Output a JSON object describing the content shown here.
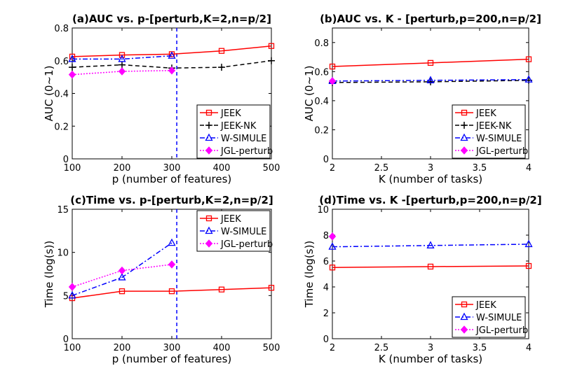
{
  "chart_data": [
    {
      "panel": "a",
      "type": "line",
      "title": "(a)AUC vs. p-[perturb,K=2,n=p/2]",
      "xlabel": "p (number of features)",
      "ylabel": "AUC (0~1)",
      "xlim": [
        100,
        500
      ],
      "ylim": [
        0,
        0.8
      ],
      "xticks": [
        100,
        200,
        300,
        400,
        500
      ],
      "yticks": [
        0,
        0.2,
        0.4,
        0.6,
        0.8
      ],
      "xtick_labels": [
        "100",
        "200",
        "300",
        "400",
        "500"
      ],
      "ytick_labels": [
        "0",
        "0.2",
        "0.4",
        "0.6",
        "0.8"
      ],
      "vline": 310,
      "legend_position": "lower-right",
      "series": [
        {
          "name": "JEEK",
          "x": [
            100,
            200,
            300,
            400,
            500
          ],
          "y": [
            0.625,
            0.635,
            0.64,
            0.66,
            0.69
          ]
        },
        {
          "name": "JEEK-NK",
          "x": [
            100,
            200,
            300,
            400,
            500
          ],
          "y": [
            0.56,
            0.575,
            0.555,
            0.56,
            0.6
          ]
        },
        {
          "name": "W-SIMULE",
          "x": [
            100,
            200,
            300
          ],
          "y": [
            0.61,
            0.61,
            0.63
          ]
        },
        {
          "name": "JGL-perturb",
          "x": [
            100,
            200,
            300
          ],
          "y": [
            0.515,
            0.535,
            0.54
          ]
        }
      ]
    },
    {
      "panel": "b",
      "type": "line",
      "title": "(b)AUC vs. K - [perturb,p=200,n=p/2]",
      "xlabel": "K (number of tasks)",
      "ylabel": "AUC (0~1)",
      "xlim": [
        2,
        4
      ],
      "ylim": [
        0,
        0.9
      ],
      "xticks": [
        2,
        2.5,
        3,
        3.5,
        4
      ],
      "yticks": [
        0,
        0.2,
        0.4,
        0.6,
        0.8
      ],
      "xtick_labels": [
        "2",
        "2.5",
        "3",
        "3.5",
        "4"
      ],
      "ytick_labels": [
        "0",
        "0.2",
        "0.4",
        "0.6",
        "0.8"
      ],
      "legend_position": "lower-right",
      "series": [
        {
          "name": "JEEK",
          "x": [
            2,
            3,
            4
          ],
          "y": [
            0.635,
            0.66,
            0.685
          ]
        },
        {
          "name": "JEEK-NK",
          "x": [
            2,
            3,
            4
          ],
          "y": [
            0.525,
            0.53,
            0.54
          ]
        },
        {
          "name": "W-SIMULE",
          "x": [
            2,
            3,
            4
          ],
          "y": [
            0.535,
            0.54,
            0.545
          ]
        },
        {
          "name": "JGL-perturb",
          "x": [
            2
          ],
          "y": [
            0.535
          ]
        }
      ]
    },
    {
      "panel": "c",
      "type": "line",
      "title": "(c)Time vs. p-[perturb,K=2,n=p/2]",
      "xlabel": "p (number of features)",
      "ylabel": "Time (log(s))",
      "xlim": [
        100,
        500
      ],
      "ylim": [
        0,
        15
      ],
      "xticks": [
        100,
        200,
        300,
        400,
        500
      ],
      "yticks": [
        0,
        5,
        10,
        15
      ],
      "xtick_labels": [
        "100",
        "200",
        "300",
        "400",
        "500"
      ],
      "ytick_labels": [
        "0",
        "5",
        "10",
        "15"
      ],
      "vline": 310,
      "legend_position": "top-right",
      "series": [
        {
          "name": "JEEK",
          "x": [
            100,
            200,
            300,
            400,
            500
          ],
          "y": [
            4.7,
            5.5,
            5.5,
            5.7,
            5.9
          ]
        },
        {
          "name": "W-SIMULE",
          "x": [
            100,
            200,
            300
          ],
          "y": [
            5.0,
            7.1,
            11.1
          ]
        },
        {
          "name": "JGL-perturb",
          "x": [
            100,
            200,
            300
          ],
          "y": [
            6.0,
            7.9,
            8.6
          ]
        }
      ]
    },
    {
      "panel": "d",
      "type": "line",
      "title": "(d)Time vs. K -[perturb,p=200,n=p/2]",
      "xlabel": "K (number of tasks)",
      "ylabel": "Time (log(s))",
      "xlim": [
        2,
        4
      ],
      "ylim": [
        0,
        10
      ],
      "xticks": [
        2,
        2.5,
        3,
        3.5,
        4
      ],
      "yticks": [
        0,
        2,
        4,
        6,
        8,
        10
      ],
      "xtick_labels": [
        "2",
        "2.5",
        "3",
        "3.5",
        "4"
      ],
      "ytick_labels": [
        "0",
        "2",
        "4",
        "6",
        "8",
        "10"
      ],
      "legend_position": "lower-right",
      "series": [
        {
          "name": "JEEK",
          "x": [
            2,
            3,
            4
          ],
          "y": [
            5.5,
            5.57,
            5.62
          ]
        },
        {
          "name": "W-SIMULE",
          "x": [
            2,
            3,
            4
          ],
          "y": [
            7.1,
            7.2,
            7.3
          ]
        },
        {
          "name": "JGL-perturb",
          "x": [
            2
          ],
          "y": [
            7.9
          ]
        }
      ]
    }
  ],
  "series_styles": {
    "JEEK": {
      "color": "#ff0000",
      "marker": "square",
      "dash": "solid"
    },
    "JEEK-NK": {
      "color": "#000000",
      "marker": "plus",
      "dash": "dashed"
    },
    "W-SIMULE": {
      "color": "#0000ff",
      "marker": "triangle",
      "dash": "dashdot"
    },
    "JGL-perturb": {
      "color": "#ff00ff",
      "marker": "diamond",
      "dash": "dotted"
    }
  },
  "vline_color": "#0000ff"
}
